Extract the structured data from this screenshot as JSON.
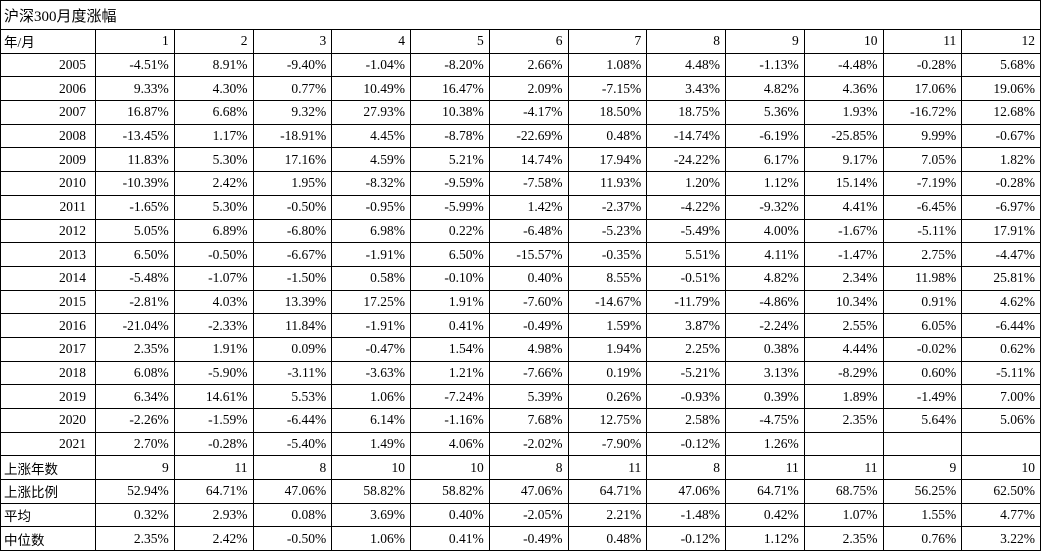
{
  "chart_data": {
    "type": "table",
    "title": "沪深300月度涨幅",
    "corner_label": "年/月",
    "columns": [
      "1",
      "2",
      "3",
      "4",
      "5",
      "6",
      "7",
      "8",
      "9",
      "10",
      "11",
      "12"
    ],
    "rows": [
      {
        "label": "2005",
        "kind": "year",
        "values": [
          "-4.51%",
          "8.91%",
          "-9.40%",
          "-1.04%",
          "-8.20%",
          "2.66%",
          "1.08%",
          "4.48%",
          "-1.13%",
          "-4.48%",
          "-0.28%",
          "5.68%"
        ]
      },
      {
        "label": "2006",
        "kind": "year",
        "values": [
          "9.33%",
          "4.30%",
          "0.77%",
          "10.49%",
          "16.47%",
          "2.09%",
          "-7.15%",
          "3.43%",
          "4.82%",
          "4.36%",
          "17.06%",
          "19.06%"
        ]
      },
      {
        "label": "2007",
        "kind": "year",
        "values": [
          "16.87%",
          "6.68%",
          "9.32%",
          "27.93%",
          "10.38%",
          "-4.17%",
          "18.50%",
          "18.75%",
          "5.36%",
          "1.93%",
          "-16.72%",
          "12.68%"
        ]
      },
      {
        "label": "2008",
        "kind": "year",
        "values": [
          "-13.45%",
          "1.17%",
          "-18.91%",
          "4.45%",
          "-8.78%",
          "-22.69%",
          "0.48%",
          "-14.74%",
          "-6.19%",
          "-25.85%",
          "9.99%",
          "-0.67%"
        ]
      },
      {
        "label": "2009",
        "kind": "year",
        "values": [
          "11.83%",
          "5.30%",
          "17.16%",
          "4.59%",
          "5.21%",
          "14.74%",
          "17.94%",
          "-24.22%",
          "6.17%",
          "9.17%",
          "7.05%",
          "1.82%"
        ]
      },
      {
        "label": "2010",
        "kind": "year",
        "values": [
          "-10.39%",
          "2.42%",
          "1.95%",
          "-8.32%",
          "-9.59%",
          "-7.58%",
          "11.93%",
          "1.20%",
          "1.12%",
          "15.14%",
          "-7.19%",
          "-0.28%"
        ]
      },
      {
        "label": "2011",
        "kind": "year",
        "values": [
          "-1.65%",
          "5.30%",
          "-0.50%",
          "-0.95%",
          "-5.99%",
          "1.42%",
          "-2.37%",
          "-4.22%",
          "-9.32%",
          "4.41%",
          "-6.45%",
          "-6.97%"
        ]
      },
      {
        "label": "2012",
        "kind": "year",
        "values": [
          "5.05%",
          "6.89%",
          "-6.80%",
          "6.98%",
          "0.22%",
          "-6.48%",
          "-5.23%",
          "-5.49%",
          "4.00%",
          "-1.67%",
          "-5.11%",
          "17.91%"
        ]
      },
      {
        "label": "2013",
        "kind": "year",
        "values": [
          "6.50%",
          "-0.50%",
          "-6.67%",
          "-1.91%",
          "6.50%",
          "-15.57%",
          "-0.35%",
          "5.51%",
          "4.11%",
          "-1.47%",
          "2.75%",
          "-4.47%"
        ]
      },
      {
        "label": "2014",
        "kind": "year",
        "values": [
          "-5.48%",
          "-1.07%",
          "-1.50%",
          "0.58%",
          "-0.10%",
          "0.40%",
          "8.55%",
          "-0.51%",
          "4.82%",
          "2.34%",
          "11.98%",
          "25.81%"
        ]
      },
      {
        "label": "2015",
        "kind": "year",
        "values": [
          "-2.81%",
          "4.03%",
          "13.39%",
          "17.25%",
          "1.91%",
          "-7.60%",
          "-14.67%",
          "-11.79%",
          "-4.86%",
          "10.34%",
          "0.91%",
          "4.62%"
        ]
      },
      {
        "label": "2016",
        "kind": "year",
        "values": [
          "-21.04%",
          "-2.33%",
          "11.84%",
          "-1.91%",
          "0.41%",
          "-0.49%",
          "1.59%",
          "3.87%",
          "-2.24%",
          "2.55%",
          "6.05%",
          "-6.44%"
        ]
      },
      {
        "label": "2017",
        "kind": "year",
        "values": [
          "2.35%",
          "1.91%",
          "0.09%",
          "-0.47%",
          "1.54%",
          "4.98%",
          "1.94%",
          "2.25%",
          "0.38%",
          "4.44%",
          "-0.02%",
          "0.62%"
        ]
      },
      {
        "label": "2018",
        "kind": "year",
        "values": [
          "6.08%",
          "-5.90%",
          "-3.11%",
          "-3.63%",
          "1.21%",
          "-7.66%",
          "0.19%",
          "-5.21%",
          "3.13%",
          "-8.29%",
          "0.60%",
          "-5.11%"
        ]
      },
      {
        "label": "2019",
        "kind": "year",
        "values": [
          "6.34%",
          "14.61%",
          "5.53%",
          "1.06%",
          "-7.24%",
          "5.39%",
          "0.26%",
          "-0.93%",
          "0.39%",
          "1.89%",
          "-1.49%",
          "7.00%"
        ]
      },
      {
        "label": "2020",
        "kind": "year",
        "values": [
          "-2.26%",
          "-1.59%",
          "-6.44%",
          "6.14%",
          "-1.16%",
          "7.68%",
          "12.75%",
          "2.58%",
          "-4.75%",
          "2.35%",
          "5.64%",
          "5.06%"
        ]
      },
      {
        "label": "2021",
        "kind": "year",
        "values": [
          "2.70%",
          "-0.28%",
          "-5.40%",
          "1.49%",
          "4.06%",
          "-2.02%",
          "-7.90%",
          "-0.12%",
          "1.26%",
          "",
          "",
          ""
        ]
      },
      {
        "label": "上涨年数",
        "kind": "summary",
        "values": [
          "9",
          "11",
          "8",
          "10",
          "10",
          "8",
          "11",
          "8",
          "11",
          "11",
          "9",
          "10"
        ]
      },
      {
        "label": "上涨比例",
        "kind": "summary",
        "values": [
          "52.94%",
          "64.71%",
          "47.06%",
          "58.82%",
          "58.82%",
          "47.06%",
          "64.71%",
          "47.06%",
          "64.71%",
          "68.75%",
          "56.25%",
          "62.50%"
        ]
      },
      {
        "label": "平均",
        "kind": "summary",
        "values": [
          "0.32%",
          "2.93%",
          "0.08%",
          "3.69%",
          "0.40%",
          "-2.05%",
          "2.21%",
          "-1.48%",
          "0.42%",
          "1.07%",
          "1.55%",
          "4.77%"
        ]
      },
      {
        "label": "中位数",
        "kind": "summary",
        "values": [
          "2.35%",
          "2.42%",
          "-0.50%",
          "1.06%",
          "0.41%",
          "-0.49%",
          "0.48%",
          "-0.12%",
          "1.12%",
          "2.35%",
          "0.76%",
          "3.22%"
        ]
      }
    ]
  }
}
